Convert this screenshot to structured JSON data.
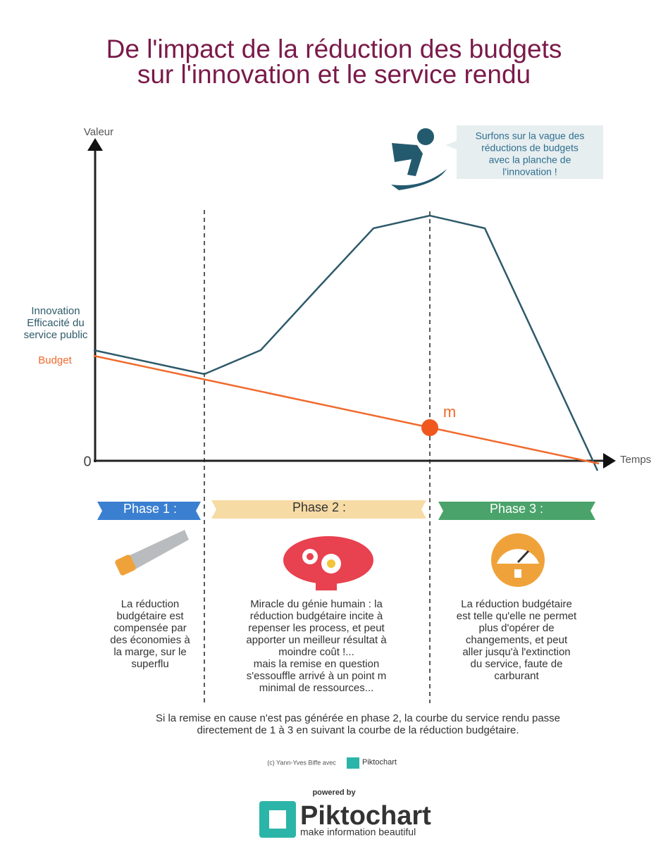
{
  "header": {
    "title": [
      "De l'impact de la réduction des budgets",
      "sur l'innovation et le service rendu"
    ]
  },
  "diagram": {
    "y_axis_label": "Valeur",
    "x_axis_label": "Temps",
    "origin_label": "0",
    "innovation_label": [
      "Innovation",
      "Efficacité du",
      "service public"
    ],
    "budget_label": "Budget",
    "point_label": "m",
    "callout": [
      "Surfons sur la vague des",
      "réductions de budgets",
      "avec la planche de",
      "l'innovation !"
    ]
  },
  "phases": [
    {
      "title": "Phase 1 :",
      "text": [
        "La réduction",
        "budgétaire est",
        "compensée par",
        "des économies à",
        "la marge, sur le",
        "superflu"
      ]
    },
    {
      "title": "Phase 2 :",
      "text": [
        "Miracle du génie humain : la",
        "réduction budgétaire incite à",
        "repenser les process, et peut",
        "apporter un meilleur résultat à",
        "moindre coût !...",
        "mais la remise en question",
        "s'essouffle arrivé à un point m",
        "minimal de ressources..."
      ]
    },
    {
      "title": "Phase 3 :",
      "text": [
        "La réduction budgétaire",
        "est telle qu'elle ne permet",
        "plus d'opérer de",
        "changements, et peut",
        "aller jusqu'à l'extinction",
        "du service, faute de",
        "carburant"
      ]
    }
  ],
  "note": [
    "Si la remise en cause n'est pas générée en phase 2, la courbe du service rendu passe",
    "directement de 1 à 3 en suivant la courbe de la réduction budgétaire."
  ],
  "credit": {
    "text": "(c) Yann-Yves Biffe avec",
    "logo": "Piktochart"
  },
  "footer": {
    "powered": "powered by",
    "brand": "Piktochart",
    "tagline": "make information beautiful"
  }
}
